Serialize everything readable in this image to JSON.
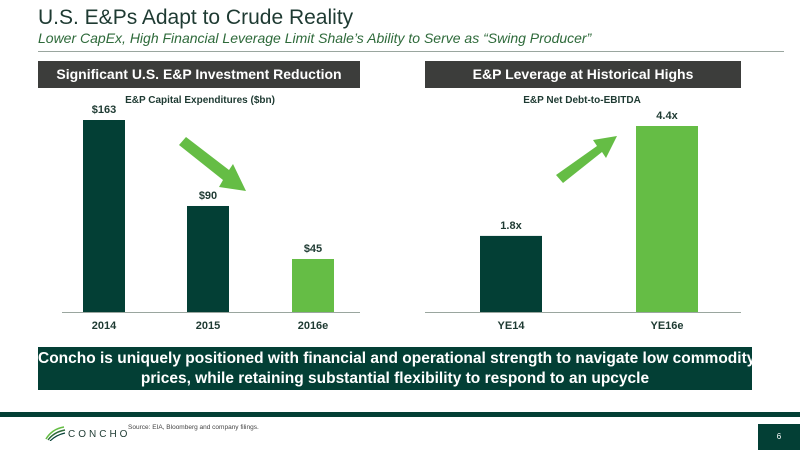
{
  "slide": {
    "title": "U.S. E&Ps Adapt to Crude Reality",
    "subtitle": "Lower CapEx, High Financial Leverage Limit Shale’s Ability to Serve as “Swing Producer”",
    "left_header": "Significant U.S. E&P Investment Reduction",
    "right_header": "E&P Leverage at Historical Highs",
    "callout_line1": "Concho is uniquely positioned with financial and operational strength to navigate low commodity",
    "callout_line2": "prices, while retaining substantial flexibility to respond to an upcycle",
    "source": "Source: EIA, Bloomberg and company filings.",
    "logo_text": "CONCHO",
    "page_number": "6"
  },
  "colors": {
    "dark_green": "#033f35",
    "light_green": "#65bd45",
    "header_gray": "#3c3d3b"
  },
  "chart_data": [
    {
      "type": "bar",
      "title": "E&P Capital Expenditures ($bn)",
      "categories": [
        "2014",
        "2015",
        "2016e"
      ],
      "values": [
        163,
        90,
        45
      ],
      "labels": [
        "$163",
        "$90",
        "$45"
      ],
      "bar_colors": [
        "#033f35",
        "#033f35",
        "#65bd45"
      ],
      "ylim": [
        0,
        163
      ],
      "annotation": "down-arrow",
      "grid": false
    },
    {
      "type": "bar",
      "title": "E&P Net Debt-to-EBITDA",
      "categories": [
        "YE14",
        "YE16e"
      ],
      "values": [
        1.8,
        4.4
      ],
      "labels": [
        "1.8x",
        "4.4x"
      ],
      "bar_colors": [
        "#033f35",
        "#65bd45"
      ],
      "ylim": [
        0,
        4.4
      ],
      "annotation": "up-arrow",
      "grid": false
    }
  ]
}
